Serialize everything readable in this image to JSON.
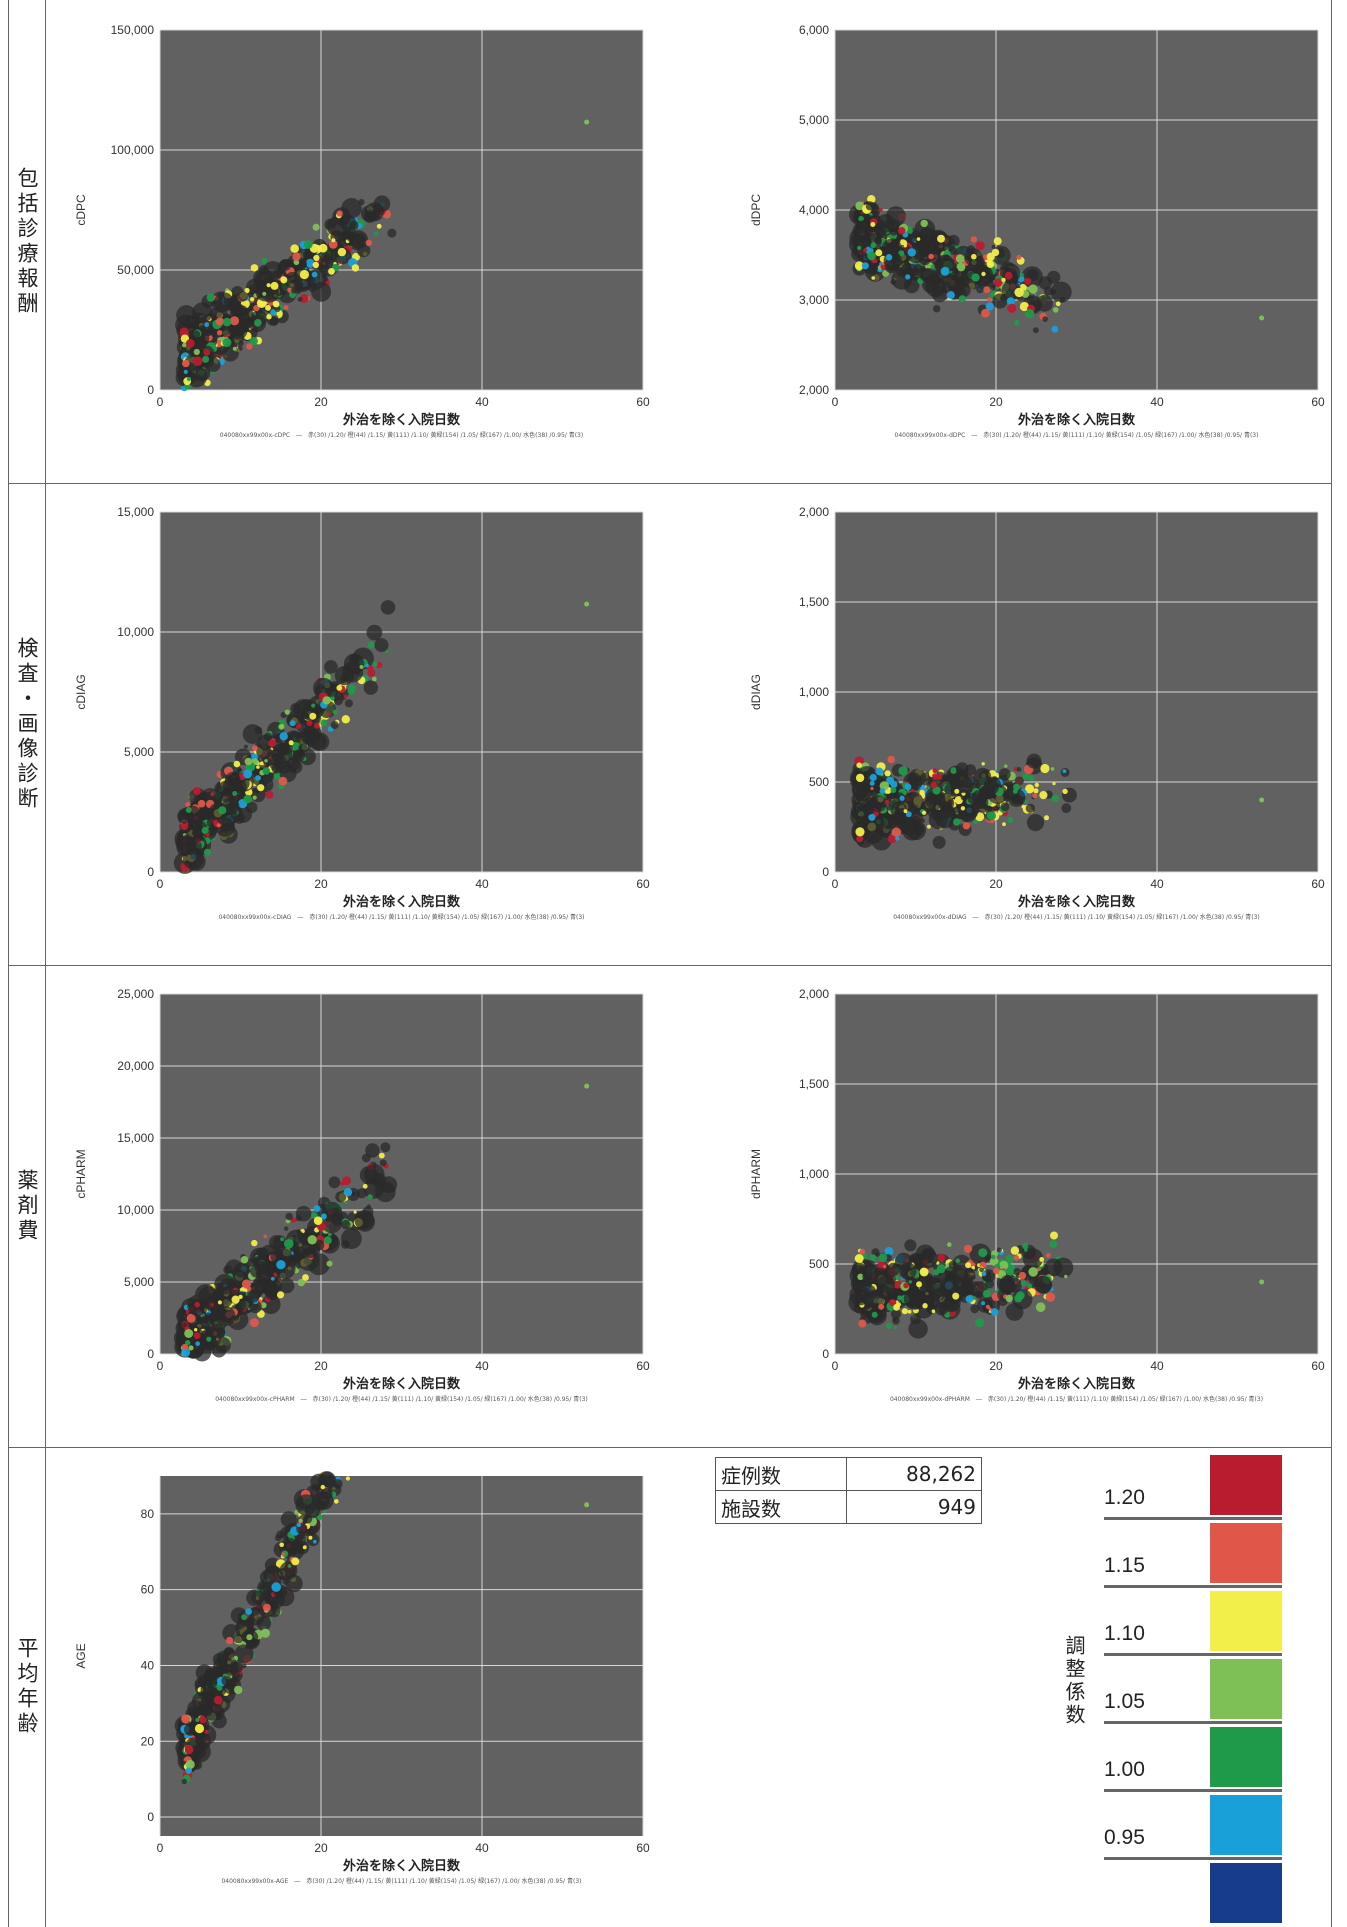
{
  "rows": [
    {
      "label": "包括診療報酬"
    },
    {
      "label": "検査・画像診断"
    },
    {
      "label": "薬剤費"
    },
    {
      "label": "平均年齢"
    }
  ],
  "chart_data": [
    {
      "type": "scatter",
      "xlabel": "外治を除く入院日数",
      "ylabel": "cDPC",
      "xlim": [
        0,
        60
      ],
      "ylim": [
        0,
        150000
      ],
      "xticks": [
        0,
        20,
        40,
        60
      ],
      "yticks": [
        0,
        50000,
        100000,
        150000
      ],
      "yticklabels": [
        "0",
        "50,000",
        "100,000",
        "150,000"
      ],
      "grid": true,
      "footnote": "040080xx99x00x-cDPC　―　赤(30) /1.20/ 橙(44) /1.15/ 黄(111) /1.10/ 黄緑(154) /1.05/ 緑(167) /1.00/ 水色(38) /0.95/ 青(3)",
      "trend": {
        "x0": 3,
        "x1": 30,
        "a": 5000,
        "b": 2500
      }
    },
    {
      "type": "scatter",
      "xlabel": "外治を除く入院日数",
      "ylabel": "dDPC",
      "xlim": [
        0,
        60
      ],
      "ylim": [
        2000,
        6000
      ],
      "xticks": [
        0,
        20,
        40,
        60
      ],
      "yticks": [
        2000,
        3000,
        4000,
        5000,
        6000
      ],
      "yticklabels": [
        "2,000",
        "3,000",
        "4,000",
        "5,000",
        "6,000"
      ],
      "grid": true,
      "footnote": "040080xx99x00x-dDPC　―　赤(30) /1.20/ 橙(44) /1.15/ 黄(111) /1.10/ 黄緑(154) /1.05/ 緑(167) /1.00/ 水色(38) /0.95/ 青(3)",
      "trend": {
        "x0": 3,
        "x1": 30,
        "a": 3800,
        "b": -30
      }
    },
    {
      "type": "scatter",
      "xlabel": "外治を除く入院日数",
      "ylabel": "cDIAG",
      "xlim": [
        0,
        60
      ],
      "ylim": [
        0,
        15000
      ],
      "xticks": [
        0,
        20,
        40,
        60
      ],
      "yticks": [
        0,
        5000,
        10000,
        15000
      ],
      "yticklabels": [
        "0",
        "5,000",
        "10,000",
        "15,000"
      ],
      "grid": true,
      "footnote": "040080xx99x00x-cDIAG　―　赤(30) /1.20/ 橙(44) /1.15/ 黄(111) /1.10/ 黄緑(154) /1.05/ 緑(167) /1.00/ 水色(38) /0.95/ 青(3)",
      "trend": {
        "x0": 3,
        "x1": 30,
        "a": 200,
        "b": 330
      }
    },
    {
      "type": "scatter",
      "xlabel": "外治を除く入院日数",
      "ylabel": "dDIAG",
      "xlim": [
        0,
        60
      ],
      "ylim": [
        0,
        2000
      ],
      "xticks": [
        0,
        20,
        40,
        60
      ],
      "yticks": [
        0,
        500,
        1000,
        1500,
        2000
      ],
      "yticklabels": [
        "0",
        "500",
        "1,000",
        "1,500",
        "2,000"
      ],
      "grid": true,
      "footnote": "040080xx99x00x-dDIAG　―　赤(30) /1.20/ 橙(44) /1.15/ 黄(111) /1.10/ 黄緑(154) /1.05/ 緑(167) /1.00/ 水色(38) /0.95/ 青(3)",
      "trend": {
        "x0": 3,
        "x1": 30,
        "a": 380,
        "b": 2
      }
    },
    {
      "type": "scatter",
      "xlabel": "外治を除く入院日数",
      "ylabel": "cPHARM",
      "xlim": [
        0,
        60
      ],
      "ylim": [
        0,
        25000
      ],
      "xticks": [
        0,
        20,
        40,
        60
      ],
      "yticks": [
        0,
        5000,
        10000,
        15000,
        20000,
        25000
      ],
      "yticklabels": [
        "0",
        "5,000",
        "10,000",
        "15,000",
        "20,000",
        "25,000"
      ],
      "grid": true,
      "footnote": "040080xx99x00x-cPHARM　―　赤(30) /1.20/ 橙(44) /1.15/ 黄(111) /1.10/ 黄緑(154) /1.05/ 緑(167) /1.00/ 水色(38) /0.95/ 青(3)",
      "trend": {
        "x0": 3,
        "x1": 30,
        "a": -500,
        "b": 450
      }
    },
    {
      "type": "scatter",
      "xlabel": "外治を除く入院日数",
      "ylabel": "dPHARM",
      "xlim": [
        0,
        60
      ],
      "ylim": [
        0,
        2000
      ],
      "xticks": [
        0,
        20,
        40,
        60
      ],
      "yticks": [
        0,
        500,
        1000,
        1500,
        2000
      ],
      "yticklabels": [
        "0",
        "500",
        "1,000",
        "1,500",
        "2,000"
      ],
      "grid": true,
      "footnote": "040080xx99x00x-dPHARM　―　赤(30) /1.20/ 橙(44) /1.15/ 黄(111) /1.10/ 黄緑(154) /1.05/ 緑(167) /1.00/ 水色(38) /0.95/ 青(3)",
      "trend": {
        "x0": 3,
        "x1": 30,
        "a": 350,
        "b": 3
      }
    },
    {
      "type": "scatter",
      "xlabel": "外治を除く入院日数",
      "ylabel": "AGE",
      "xlim": [
        0,
        60
      ],
      "ylim": [
        -5,
        90
      ],
      "xticks": [
        0,
        20,
        40,
        60
      ],
      "yticks": [
        0,
        20,
        40,
        60,
        80
      ],
      "yticklabels": [
        "0",
        "20",
        "40",
        "60",
        "80"
      ],
      "grid": true,
      "footnote": "040080xx99x00x-AGE　―　赤(30) /1.20/ 橙(44) /1.15/ 黄(111) /1.10/ 黄緑(154) /1.05/ 緑(167) /1.00/ 水色(38) /0.95/ 青(3)",
      "trend": {
        "x0": 3,
        "x1": 30,
        "a": 5,
        "b": 4
      }
    }
  ],
  "stats": {
    "cases_label": "症例数",
    "cases_value": "88,262",
    "facilities_label": "施設数",
    "facilities_value": "949"
  },
  "legend": {
    "title": "調整係数",
    "items": [
      {
        "label": "1.20",
        "color": "#b81c2e"
      },
      {
        "label": "1.15",
        "color": "#e0574a"
      },
      {
        "label": "1.10",
        "color": "#f2ee4a"
      },
      {
        "label": "1.05",
        "color": "#7fc056"
      },
      {
        "label": "1.00",
        "color": "#1f9a4a"
      },
      {
        "label": "0.95",
        "color": "#1aa0d8"
      },
      {
        "label": "",
        "color": "#173c8c"
      }
    ]
  },
  "colors": {
    "plot_background": "#616161",
    "gridline": "#d8d8d8",
    "dark_bubble": "#2a2a2a"
  }
}
